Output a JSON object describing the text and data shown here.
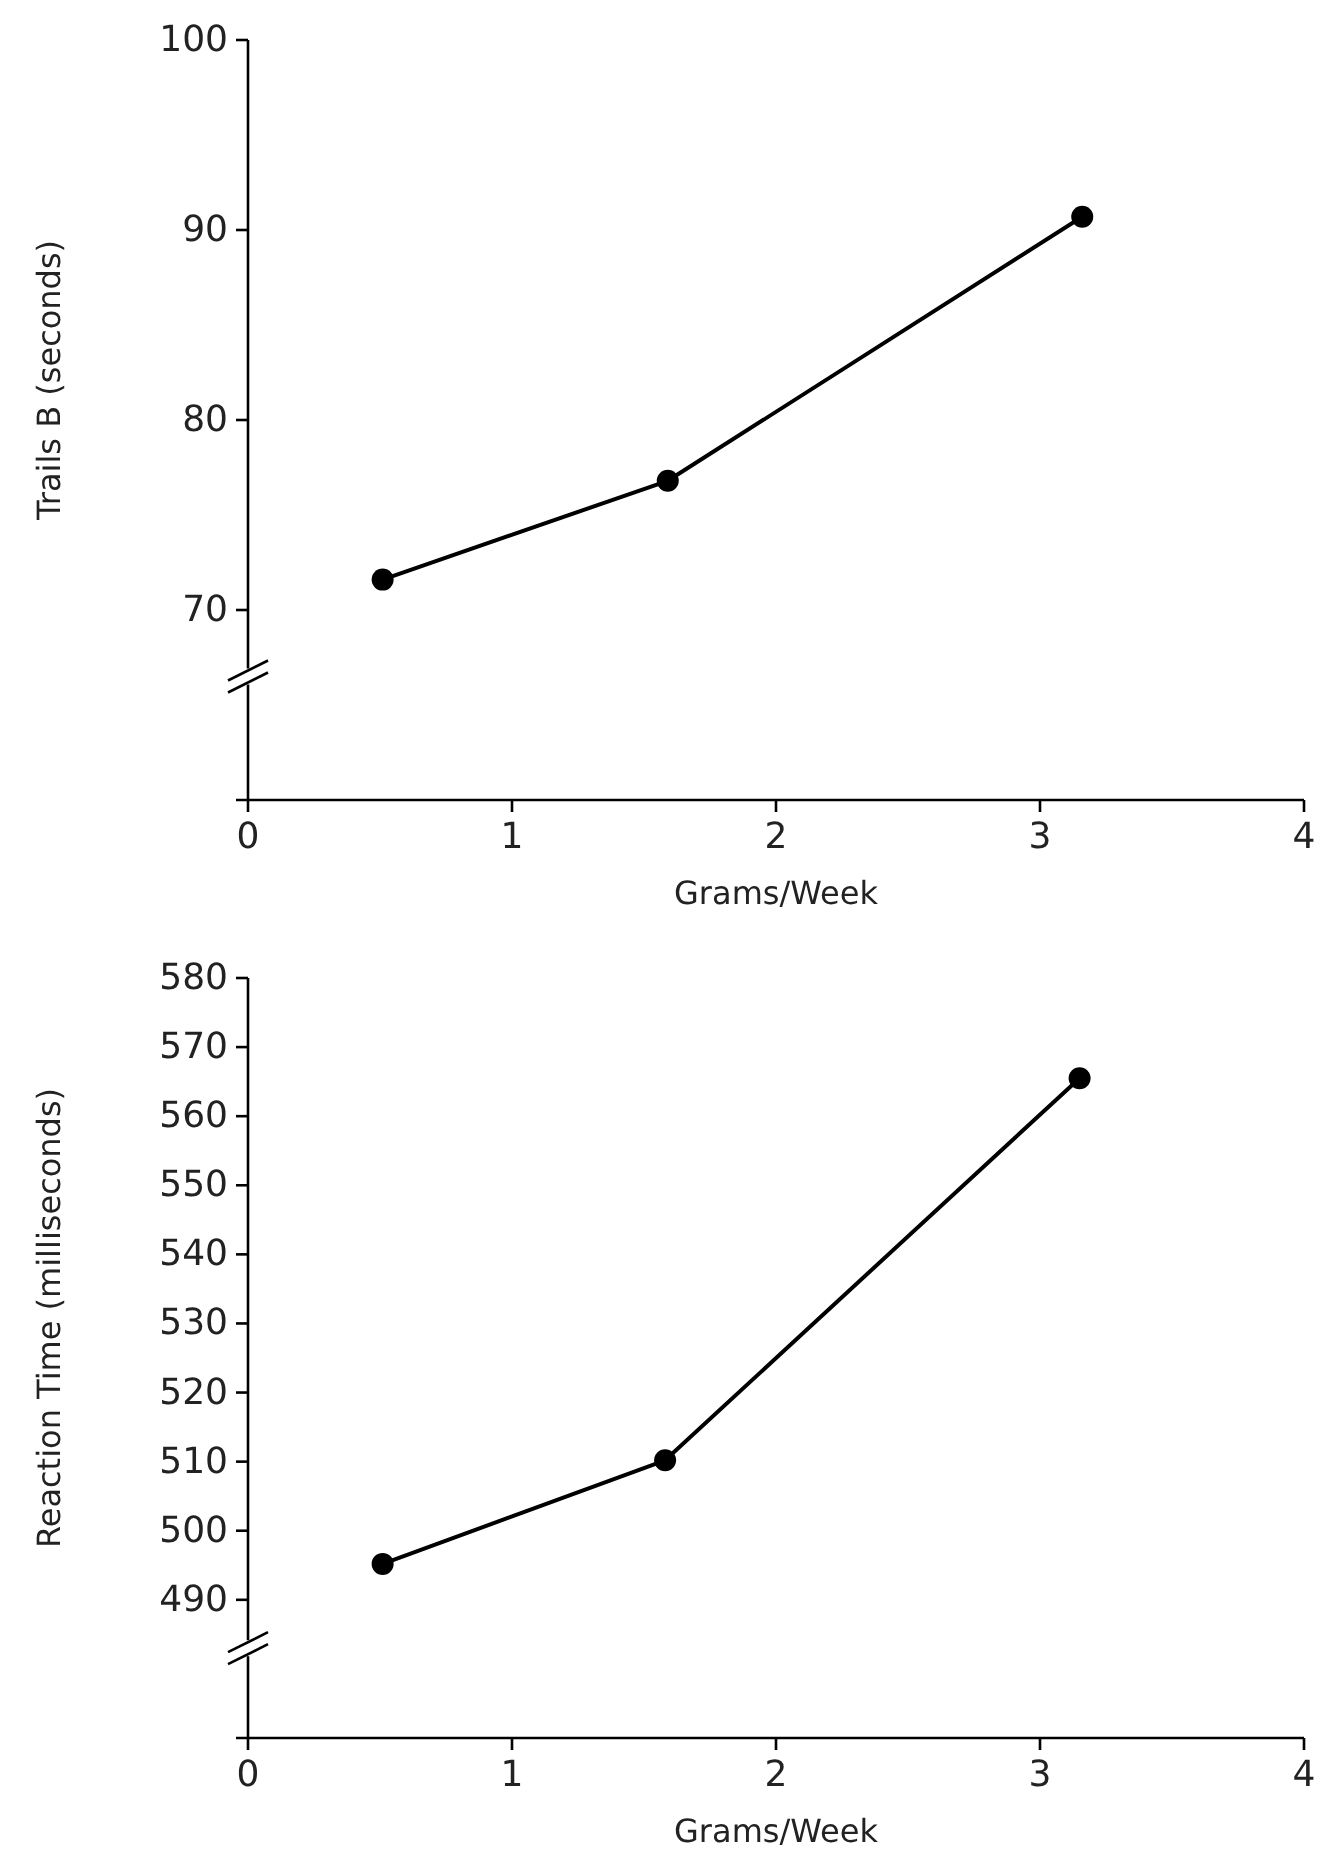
{
  "chart_data": [
    {
      "type": "line",
      "xlabel": "Grams/Week",
      "ylabel": "Trails B (seconds)",
      "x": [
        0.51,
        1.59,
        3.16
      ],
      "values": [
        71.6,
        76.8,
        90.7
      ],
      "color": "#000000",
      "marker": "circle",
      "line_style": "solid",
      "xlim": [
        0,
        4
      ],
      "xticks": [
        0,
        1,
        2,
        3,
        4
      ],
      "ylim": [
        60,
        100
      ],
      "yticks": [
        70,
        80,
        90,
        100
      ],
      "grid": false
    },
    {
      "type": "line",
      "xlabel": "Grams/Week",
      "ylabel": "Reaction Time (milliseconds)",
      "x": [
        0.51,
        1.58,
        3.15
      ],
      "values": [
        495.2,
        510.2,
        565.5
      ],
      "color": "#000000",
      "marker": "circle",
      "line_style": "solid",
      "xlim": [
        0,
        4
      ],
      "xticks": [
        0,
        1,
        2,
        3,
        4
      ],
      "ylim": [
        470,
        580
      ],
      "yticks": [
        490,
        500,
        510,
        520,
        530,
        540,
        550,
        560,
        570,
        580
      ],
      "grid": false
    }
  ]
}
